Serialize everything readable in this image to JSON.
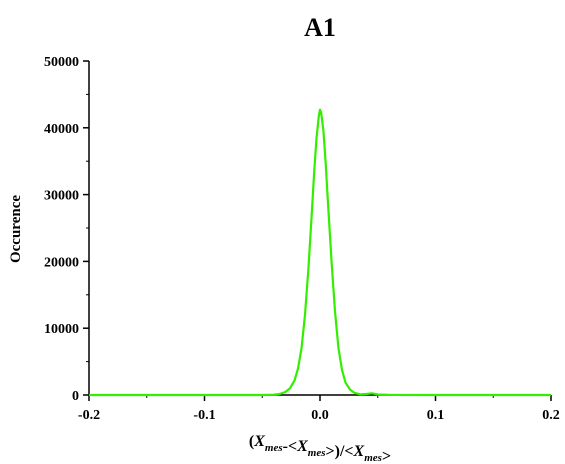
{
  "chart_data": {
    "type": "line",
    "title": "A1",
    "ylabel": "Occurence",
    "xlabel": {
      "parts": [
        {
          "text": "(",
          "style": "normal"
        },
        {
          "text": "X",
          "style": "italic"
        },
        {
          "text": "mes",
          "style": "sub"
        },
        {
          "text": "-<",
          "style": "normal"
        },
        {
          "text": "X",
          "style": "italic"
        },
        {
          "text": "mes",
          "style": "sub"
        },
        {
          "text": ">)/<",
          "style": "normal"
        },
        {
          "text": "X",
          "style": "italic"
        },
        {
          "text": "mes",
          "style": "sub"
        },
        {
          "text": ">",
          "style": "normal"
        }
      ]
    },
    "xlim": [
      -0.2,
      0.2
    ],
    "ylim": [
      0,
      50000
    ],
    "x_ticks": [
      -0.2,
      -0.1,
      0.0,
      0.1,
      0.2
    ],
    "x_tick_labels": [
      "-0.2",
      "-0.1",
      "0.0",
      "0.1",
      "0.2"
    ],
    "y_ticks": [
      0,
      10000,
      20000,
      30000,
      40000,
      50000
    ],
    "y_tick_labels": [
      "0",
      "10000",
      "20000",
      "30000",
      "40000",
      "50000"
    ],
    "grid": false,
    "series": [
      {
        "color": "#33ee00",
        "points": [
          [
            -0.2,
            0
          ],
          [
            -0.1,
            0
          ],
          [
            -0.05,
            0
          ],
          [
            -0.04,
            50
          ],
          [
            -0.035,
            150
          ],
          [
            -0.03,
            450
          ],
          [
            -0.026,
            1000
          ],
          [
            -0.022,
            2200
          ],
          [
            -0.019,
            4000
          ],
          [
            -0.016,
            7000
          ],
          [
            -0.013,
            12000
          ],
          [
            -0.01,
            19000
          ],
          [
            -0.007,
            27500
          ],
          [
            -0.005,
            33500
          ],
          [
            -0.003,
            38500
          ],
          [
            -0.001,
            41800
          ],
          [
            0.0,
            42700
          ],
          [
            0.001,
            42300
          ],
          [
            0.003,
            39500
          ],
          [
            0.005,
            34500
          ],
          [
            0.007,
            28500
          ],
          [
            0.01,
            20000
          ],
          [
            0.013,
            12500
          ],
          [
            0.016,
            7000
          ],
          [
            0.019,
            3800
          ],
          [
            0.022,
            1900
          ],
          [
            0.026,
            800
          ],
          [
            0.03,
            300
          ],
          [
            0.035,
            100
          ],
          [
            0.04,
            150
          ],
          [
            0.045,
            250
          ],
          [
            0.05,
            80
          ],
          [
            0.06,
            20
          ],
          [
            0.1,
            0
          ],
          [
            0.2,
            0
          ]
        ]
      }
    ]
  }
}
